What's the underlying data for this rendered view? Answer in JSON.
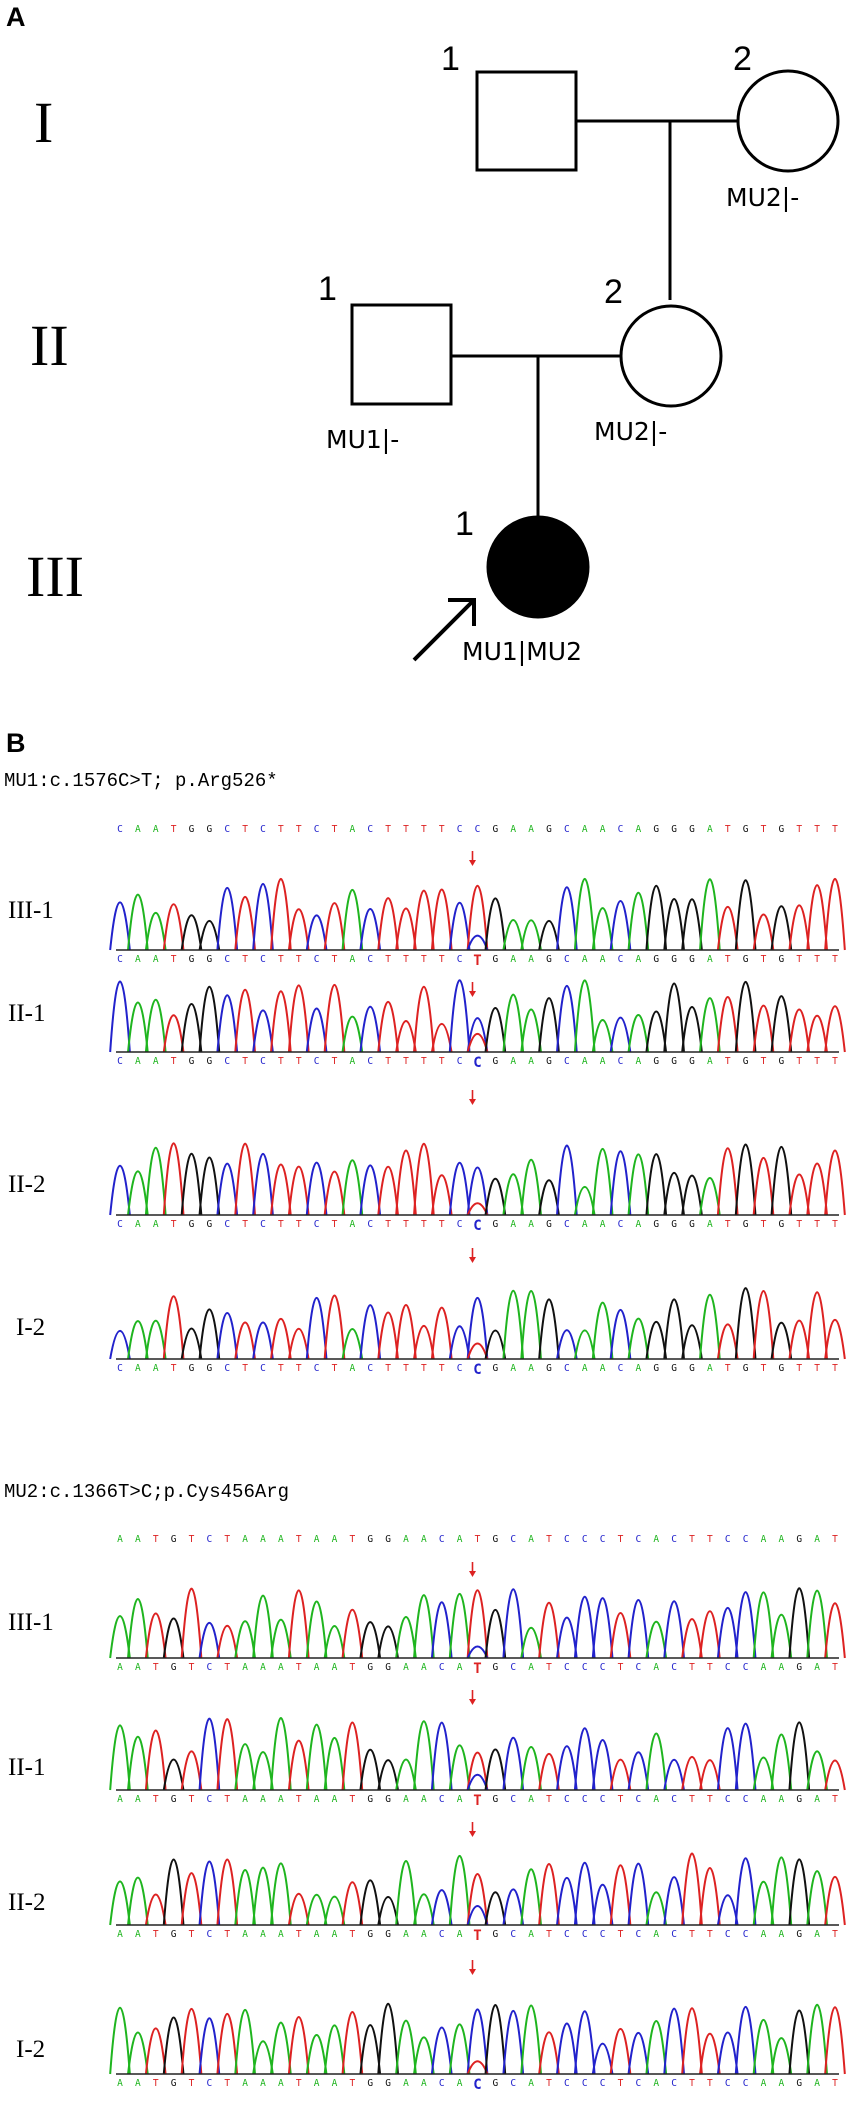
{
  "panel_a": {
    "letter": "A",
    "generations": [
      "I",
      "II",
      "III"
    ],
    "individuals": {
      "I1": {
        "number": "1",
        "genotype": ""
      },
      "I2": {
        "number": "2",
        "genotype": "MU2|-"
      },
      "II1": {
        "number": "1",
        "genotype": "MU1|-"
      },
      "II2": {
        "number": "2",
        "genotype": "MU2|-"
      },
      "III1": {
        "number": "1",
        "genotype": "MU1|MU2",
        "affected": true,
        "proband": true
      }
    }
  },
  "panel_b": {
    "letter": "B",
    "mutations": [
      {
        "title": "MU1:c.1576C>T; p.Arg526*",
        "reference": "CAATGGCTCTTCTACTTTTCCGAAGCAACAGGGATGTGTTT",
        "variant_position": 21,
        "traces": [
          {
            "label": "III-1",
            "sequence": "CAATGGCTCTTCTACTTTTCTGAAGCAACAGGGATGTGTTT",
            "call": "T"
          },
          {
            "label": "II-1",
            "sequence": "CAATGGCTCTTCTACTTTTCCGAAGCAACAGGGATGTGTTT",
            "call": "C"
          },
          {
            "label": "II-2",
            "sequence": "CAATGGCTCTTCTACTTTTCCGAAGCAACAGGGATGTGTTT",
            "call": "C"
          },
          {
            "label": "I-2",
            "sequence": "CAATGGCTCTTCTACTTTTCCGAAGCAACAGGGATGTGTTT",
            "call": "C"
          }
        ]
      },
      {
        "title": "MU2:c.1366T>C;p.Cys456Arg",
        "reference": "AATGTCTAAATAATGGAACATGCATCCCTCACTTCCAAGAT",
        "variant_position": 21,
        "traces": [
          {
            "label": "III-1",
            "sequence": "AATGTCTAAATAATGGAACATGCATCCCTCACTTCCAAGAT",
            "call": "T"
          },
          {
            "label": "II-1",
            "sequence": "AATGTCTAAATAATGGAACATGCATCCCTCACTTCCAAGAT",
            "call": "T"
          },
          {
            "label": "II-2",
            "sequence": "AATGTCTAAATAATGGAACATGCATCCCTCACTTCCAAGAT",
            "call": "T"
          },
          {
            "label": "I-2",
            "sequence": "AATGTCTAAATAATGGAACACGCATCCCTCACTTCCAAGAT",
            "call": "C"
          }
        ]
      }
    ]
  },
  "colors": {
    "A": "#1fb51f",
    "C": "#2222cc",
    "G": "#111111",
    "T": "#dd2222",
    "arrow": "#dd2222"
  }
}
